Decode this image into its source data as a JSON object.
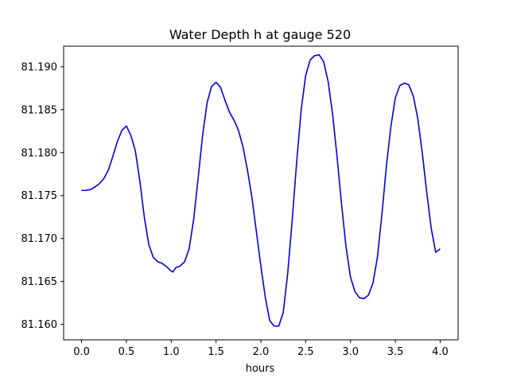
{
  "chart_data": {
    "type": "line",
    "title": "Water Depth h at gauge 520",
    "xlabel": "hours",
    "ylabel": "",
    "xlim": [
      -0.2,
      4.2
    ],
    "ylim": [
      81.1582,
      81.1924
    ],
    "xticks": [
      0.0,
      0.5,
      1.0,
      1.5,
      2.0,
      2.5,
      3.0,
      3.5,
      4.0
    ],
    "xtick_labels": [
      "0.0",
      "0.5",
      "1.0",
      "1.5",
      "2.0",
      "2.5",
      "3.0",
      "3.5",
      "4.0"
    ],
    "yticks": [
      81.16,
      81.165,
      81.17,
      81.175,
      81.18,
      81.185,
      81.19
    ],
    "ytick_labels": [
      "81.160",
      "81.165",
      "81.170",
      "81.175",
      "81.180",
      "81.185",
      "81.190"
    ],
    "grid": false,
    "series": [
      {
        "color": "#0000dd",
        "points": [
          [
            0.0,
            81.1756
          ],
          [
            0.05,
            81.1756
          ],
          [
            0.1,
            81.1757
          ],
          [
            0.15,
            81.176
          ],
          [
            0.2,
            81.1764
          ],
          [
            0.25,
            81.177
          ],
          [
            0.3,
            81.178
          ],
          [
            0.35,
            81.1796
          ],
          [
            0.4,
            81.1813
          ],
          [
            0.45,
            81.1826
          ],
          [
            0.5,
            81.1831
          ],
          [
            0.55,
            81.182
          ],
          [
            0.6,
            81.1802
          ],
          [
            0.65,
            81.1767
          ],
          [
            0.7,
            81.1725
          ],
          [
            0.75,
            81.1693
          ],
          [
            0.8,
            81.1678
          ],
          [
            0.85,
            81.1673
          ],
          [
            0.9,
            81.1671
          ],
          [
            0.95,
            81.1667
          ],
          [
            1.0,
            81.1662
          ],
          [
            1.02,
            81.1661
          ],
          [
            1.05,
            81.1666
          ],
          [
            1.1,
            81.1668
          ],
          [
            1.15,
            81.1673
          ],
          [
            1.2,
            81.1688
          ],
          [
            1.25,
            81.1722
          ],
          [
            1.3,
            81.177
          ],
          [
            1.35,
            81.182
          ],
          [
            1.4,
            81.1858
          ],
          [
            1.45,
            81.1877
          ],
          [
            1.5,
            81.1882
          ],
          [
            1.55,
            81.1876
          ],
          [
            1.6,
            81.1861
          ],
          [
            1.65,
            81.1847
          ],
          [
            1.7,
            81.1838
          ],
          [
            1.75,
            81.1826
          ],
          [
            1.8,
            81.1807
          ],
          [
            1.85,
            81.178
          ],
          [
            1.9,
            81.1748
          ],
          [
            1.95,
            81.1708
          ],
          [
            2.0,
            81.1668
          ],
          [
            2.05,
            81.1631
          ],
          [
            2.1,
            81.1604
          ],
          [
            2.15,
            81.1598
          ],
          [
            2.2,
            81.1598
          ],
          [
            2.25,
            81.1614
          ],
          [
            2.3,
            81.166
          ],
          [
            2.35,
            81.1722
          ],
          [
            2.4,
            81.179
          ],
          [
            2.45,
            81.185
          ],
          [
            2.5,
            81.189
          ],
          [
            2.55,
            81.1908
          ],
          [
            2.6,
            81.1913
          ],
          [
            2.65,
            81.1914
          ],
          [
            2.7,
            81.1906
          ],
          [
            2.75,
            81.1883
          ],
          [
            2.8,
            81.1845
          ],
          [
            2.85,
            81.1795
          ],
          [
            2.9,
            81.174
          ],
          [
            2.95,
            81.169
          ],
          [
            3.0,
            81.1655
          ],
          [
            3.05,
            81.1638
          ],
          [
            3.1,
            81.1631
          ],
          [
            3.15,
            81.163
          ],
          [
            3.2,
            81.1634
          ],
          [
            3.25,
            81.1648
          ],
          [
            3.3,
            81.1678
          ],
          [
            3.35,
            81.1728
          ],
          [
            3.4,
            81.1784
          ],
          [
            3.45,
            81.183
          ],
          [
            3.5,
            81.1864
          ],
          [
            3.55,
            81.1878
          ],
          [
            3.6,
            81.1881
          ],
          [
            3.65,
            81.1879
          ],
          [
            3.7,
            81.1866
          ],
          [
            3.75,
            81.184
          ],
          [
            3.8,
            81.18
          ],
          [
            3.85,
            81.1754
          ],
          [
            3.9,
            81.1712
          ],
          [
            3.95,
            81.1684
          ],
          [
            4.0,
            81.1688
          ]
        ]
      }
    ]
  }
}
